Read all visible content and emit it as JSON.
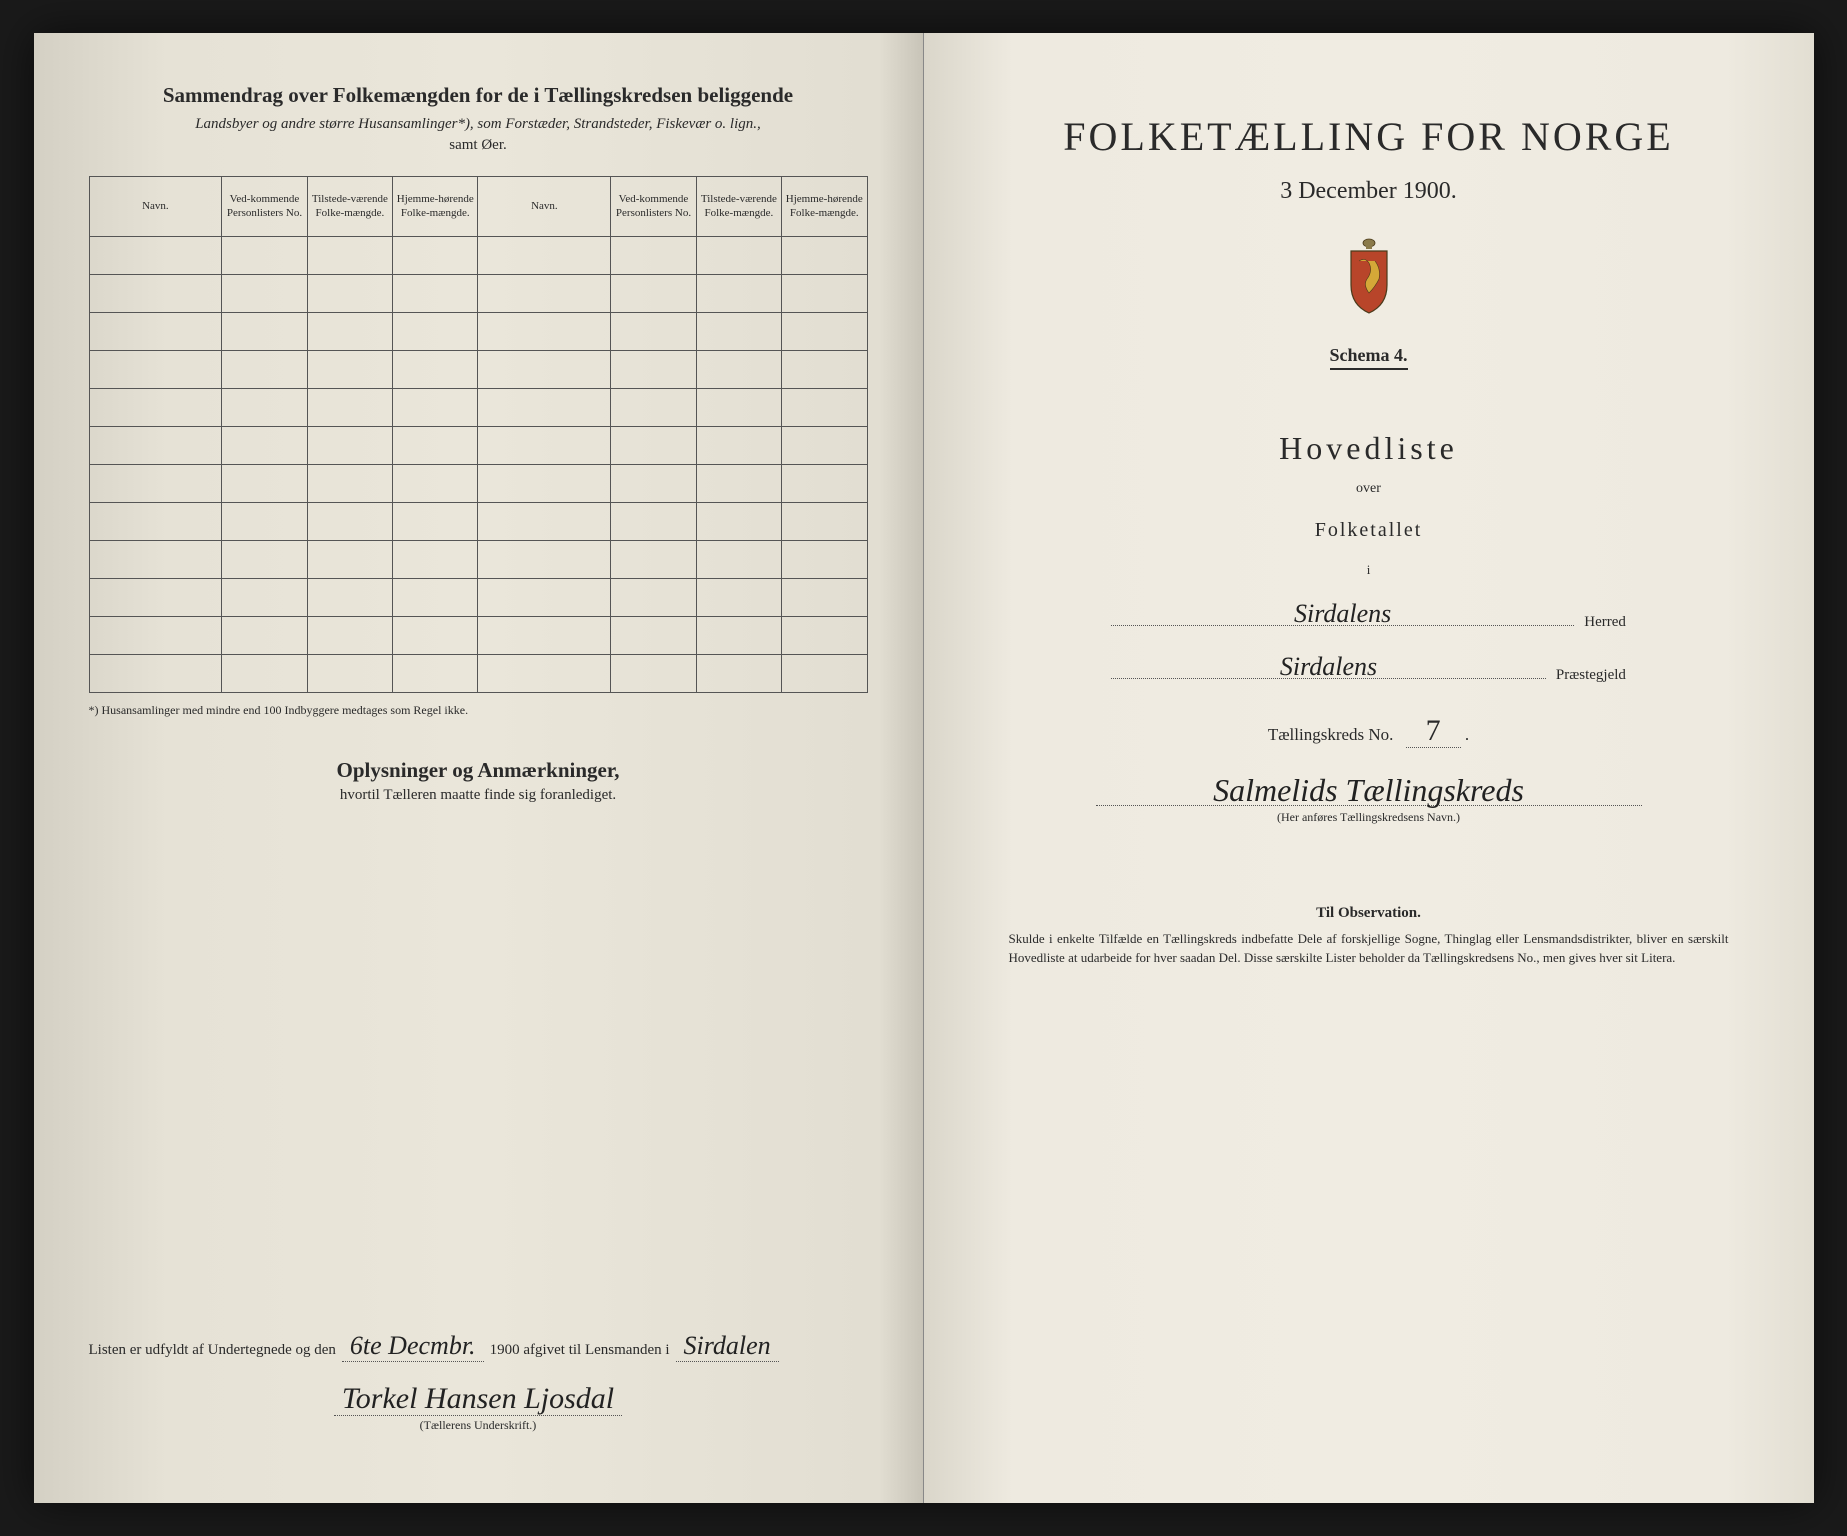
{
  "left": {
    "title": "Sammendrag over Folkemængden for de i Tællingskredsen beliggende",
    "subtitle_line1": "Landsbyer og andre større Husansamlinger*), som Forstæder, Strandsteder, Fiskevær o. lign.,",
    "subtitle_line2": "samt Øer.",
    "headers": {
      "navn": "Navn.",
      "vedkommende": "Ved-kommende Personlisters No.",
      "tilstede": "Tilstede-værende Folke-mængde.",
      "hjemme": "Hjemme-hørende Folke-mængde."
    },
    "footnote": "*) Husansamlinger med mindre end 100 Indbyggere medtages som Regel ikke.",
    "oplysninger_title": "Oplysninger og Anmærkninger,",
    "oplysninger_sub": "hvortil Tælleren maatte finde sig foranlediget.",
    "sig_prefix": "Listen er udfyldt af Undertegnede og den",
    "sig_date": "6te Decmbr.",
    "sig_year": "1900 afgivet til Lensmanden i",
    "sig_place": "Sirdalen",
    "sig_name": "Torkel Hansen Ljosdal",
    "sig_caption": "(Tællerens Underskrift.)"
  },
  "right": {
    "main_title": "FOLKETÆLLING FOR NORGE",
    "main_date": "3 December 1900.",
    "schema": "Schema 4.",
    "hovedliste": "Hovedliste",
    "over": "over",
    "folketallet": "Folketallet",
    "small_i": "i",
    "herred_value": "Sirdalens",
    "herred_suffix": "Herred",
    "praestegjeld_value": "Sirdalens",
    "praestegjeld_suffix": "Præstegjeld",
    "kreds_label": "Tællingskreds No.",
    "kreds_no": "7",
    "kreds_name": "Salmelids Tællingskreds",
    "kreds_caption": "(Her anføres Tællingskredsens Navn.)",
    "obs_title": "Til Observation.",
    "obs_text": "Skulde i enkelte Tilfælde en Tællingskreds indbefatte Dele af forskjellige Sogne, Thinglag eller Lensmandsdistrikter, bliver en særskilt Hovedliste at udarbeide for hver saadan Del. Disse særskilte Lister beholder da Tællingskredsens No., men gives hver sit Litera."
  },
  "style": {
    "bg_dark": "#1a1a1a",
    "paper_left": "#e6e2d6",
    "paper_right": "#f0ece2",
    "text_color": "#2a2a2a",
    "border_color": "#555555",
    "table_rows": 12,
    "font_main": "Georgia",
    "font_script": "Brush Script MT"
  }
}
